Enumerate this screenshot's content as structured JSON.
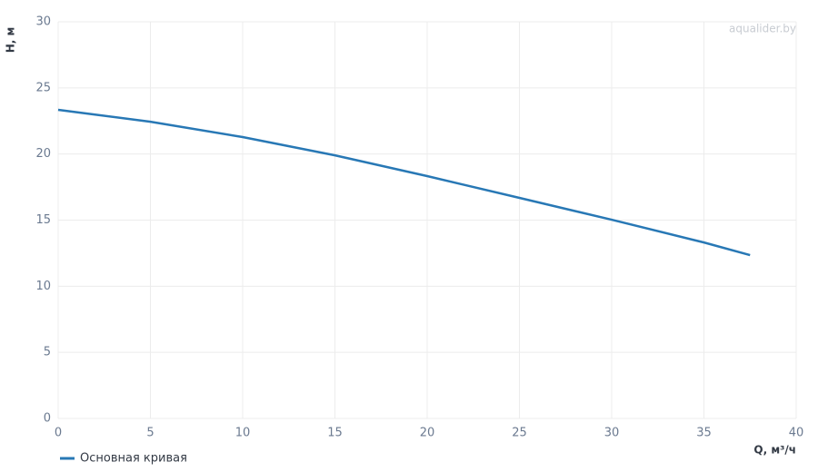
{
  "chart_data": {
    "type": "line",
    "x_label": "Q, м³/ч",
    "y_label": "H, м",
    "watermark": "aqualider.by",
    "x": [
      0,
      5,
      10,
      15,
      20,
      25,
      30,
      35,
      37.5
    ],
    "series": [
      {
        "name": "Основная кривая",
        "color": "#2878b5",
        "values": [
          23.34,
          22.44,
          21.28,
          19.9,
          18.33,
          16.68,
          15.03,
          13.31,
          12.35
        ]
      }
    ],
    "xlim": [
      0,
      40
    ],
    "xticks": [
      0,
      5,
      10,
      15,
      20,
      25,
      30,
      35,
      40
    ],
    "ylim": [
      0,
      30
    ],
    "yticks": [
      0,
      5,
      10,
      15,
      20,
      25,
      30
    ],
    "grid": true,
    "legend": "bottom-left"
  }
}
